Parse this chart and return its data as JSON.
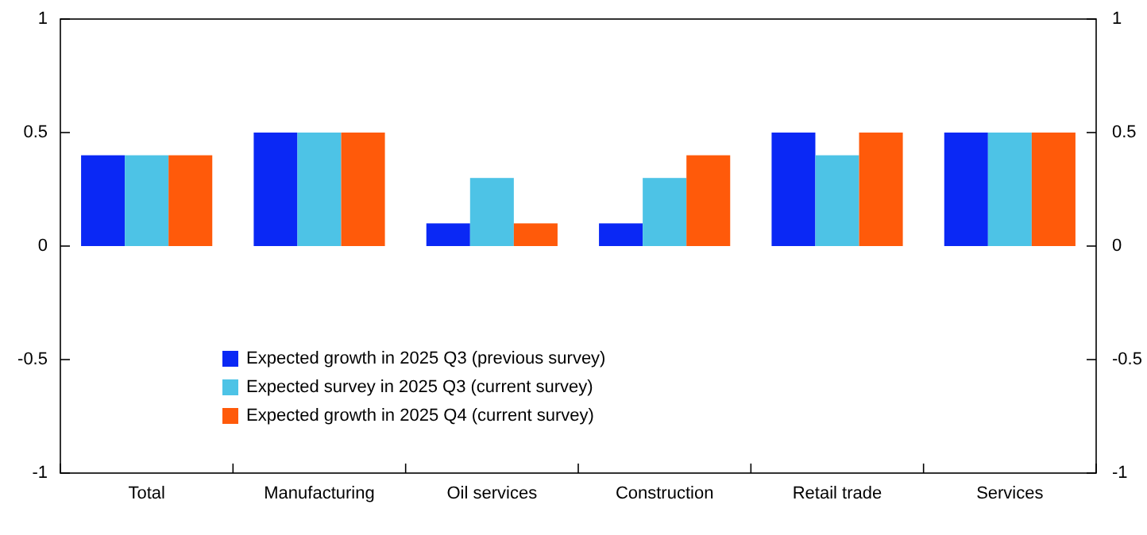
{
  "chart_data": {
    "type": "bar",
    "categories": [
      "Total",
      "Manufacturing",
      "Oil services",
      "Construction",
      "Retail trade",
      "Services"
    ],
    "series": [
      {
        "name": "Expected growth in 2025 Q3 (previous survey)",
        "color": "#0a28f5",
        "values": [
          0.4,
          0.5,
          0.1,
          0.1,
          0.5,
          0.5
        ]
      },
      {
        "name": "Expected survey in 2025 Q3 (current survey)",
        "color": "#4dc3e6",
        "values": [
          0.4,
          0.5,
          0.3,
          0.3,
          0.4,
          0.5
        ]
      },
      {
        "name": "Expected growth in 2025 Q4 (current survey)",
        "color": "#ff5a0a",
        "values": [
          0.4,
          0.5,
          0.1,
          0.4,
          0.5,
          0.5
        ]
      }
    ],
    "ylim": [
      -1,
      1
    ],
    "yticks": [
      -1,
      -0.5,
      0,
      0.5,
      1
    ],
    "y2lim": [
      -1,
      1
    ],
    "y2ticks": [
      -1,
      -0.5,
      0,
      0.5,
      1
    ],
    "grid": false,
    "legend": "bottom"
  }
}
